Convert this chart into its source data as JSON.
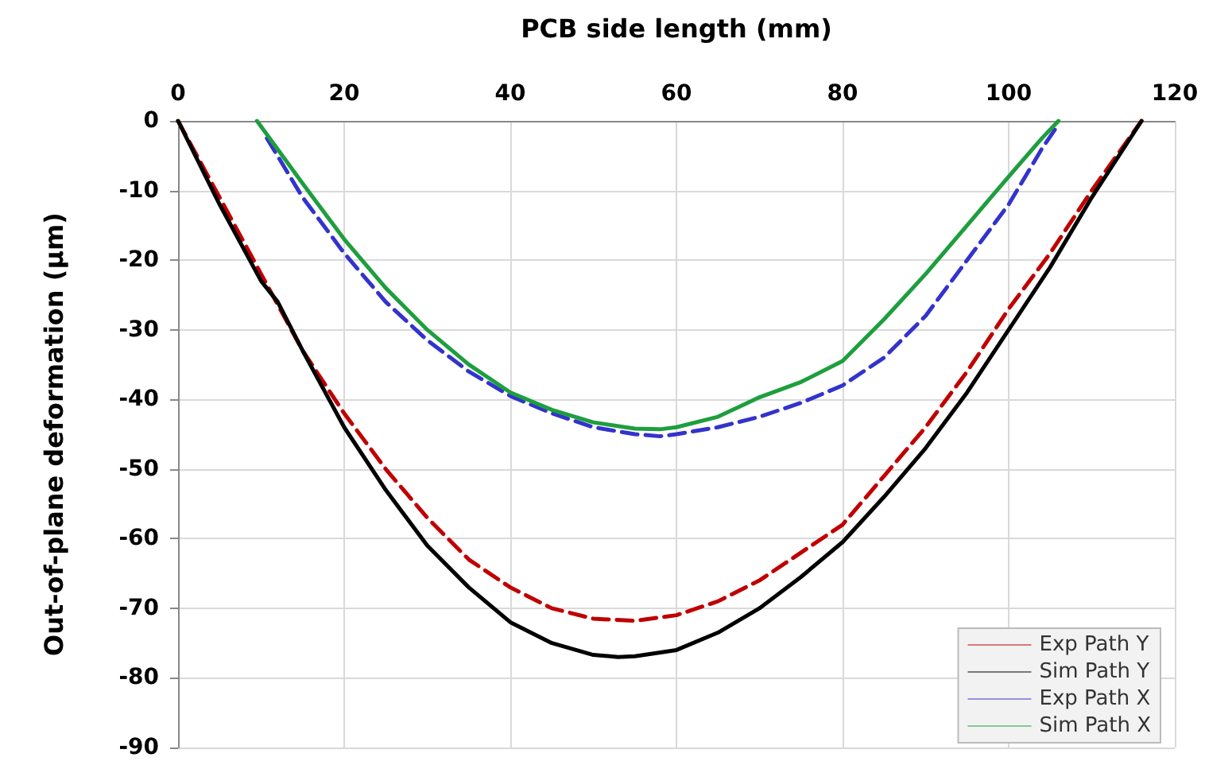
{
  "chart_data": {
    "type": "line",
    "xlabel": "PCB side length (mm)",
    "ylabel": "Out-of-plane deformation (µm)",
    "xlim": [
      0,
      120
    ],
    "xticks": [
      0,
      20,
      40,
      60,
      80,
      100,
      120
    ],
    "ylim": [
      -90,
      0
    ],
    "yticks": [
      -90,
      -80,
      -70,
      -60,
      -50,
      -40,
      -30,
      -20,
      -10,
      0
    ],
    "grid": true,
    "legend": "bottom right",
    "marker": "none",
    "series": [
      {
        "name": "Exp Path Y",
        "color": "#c00000",
        "line_style": "dashed",
        "x": [
          0,
          5,
          10,
          15,
          20,
          25,
          30,
          35,
          40,
          45,
          50,
          55,
          60,
          65,
          70,
          75,
          80,
          85,
          90,
          95,
          100,
          105,
          110,
          116
        ],
        "values": [
          0,
          -11,
          -22,
          -33,
          -42,
          -50,
          -57,
          -63,
          -67,
          -70,
          -71.5,
          -71.8,
          -71,
          -69,
          -66,
          -62,
          -58,
          -51,
          -44,
          -36,
          -27,
          -19,
          -10,
          0
        ]
      },
      {
        "name": "Sim Path Y",
        "color": "#000000",
        "line_style": "solid",
        "x": [
          0,
          5,
          10,
          12,
          15,
          20,
          25,
          30,
          35,
          40,
          45,
          50,
          53,
          55,
          60,
          65,
          70,
          75,
          80,
          85,
          90,
          95,
          100,
          105,
          110,
          116
        ],
        "values": [
          0,
          -12,
          -23,
          -26,
          -33,
          -44,
          -53,
          -61,
          -67,
          -72,
          -75,
          -76.7,
          -77,
          -76.9,
          -76,
          -73.5,
          -70,
          -65.5,
          -60.5,
          -54,
          -47,
          -39,
          -30,
          -21,
          -11,
          0
        ]
      },
      {
        "name": "Exp Path X",
        "color": "#3333cc",
        "line_style": "dashed",
        "x": [
          10.7,
          15,
          20,
          25,
          30,
          35,
          40,
          45,
          50,
          55,
          58,
          60,
          65,
          70,
          75,
          80,
          85,
          90,
          95,
          100,
          104,
          106
        ],
        "values": [
          -2.5,
          -11,
          -19,
          -26,
          -31.5,
          -36,
          -39.5,
          -42,
          -44,
          -45,
          -45.3,
          -45,
          -44,
          -42.5,
          -40.5,
          -38,
          -34,
          -28,
          -20,
          -12,
          -4,
          -0.5
        ]
      },
      {
        "name": "Sim Path X",
        "color": "#1e9e3e",
        "line_style": "solid",
        "x": [
          9.5,
          15,
          20,
          25,
          30,
          35,
          40,
          45,
          50,
          55,
          58,
          60,
          65,
          70,
          75,
          80,
          85,
          90,
          95,
          100,
          104,
          106
        ],
        "values": [
          0,
          -9,
          -17,
          -24,
          -30,
          -35,
          -39,
          -41.5,
          -43.3,
          -44.2,
          -44.3,
          -44,
          -42.5,
          -39.7,
          -37.5,
          -34.5,
          -28.5,
          -22,
          -15,
          -8,
          -2.5,
          0
        ]
      }
    ]
  }
}
